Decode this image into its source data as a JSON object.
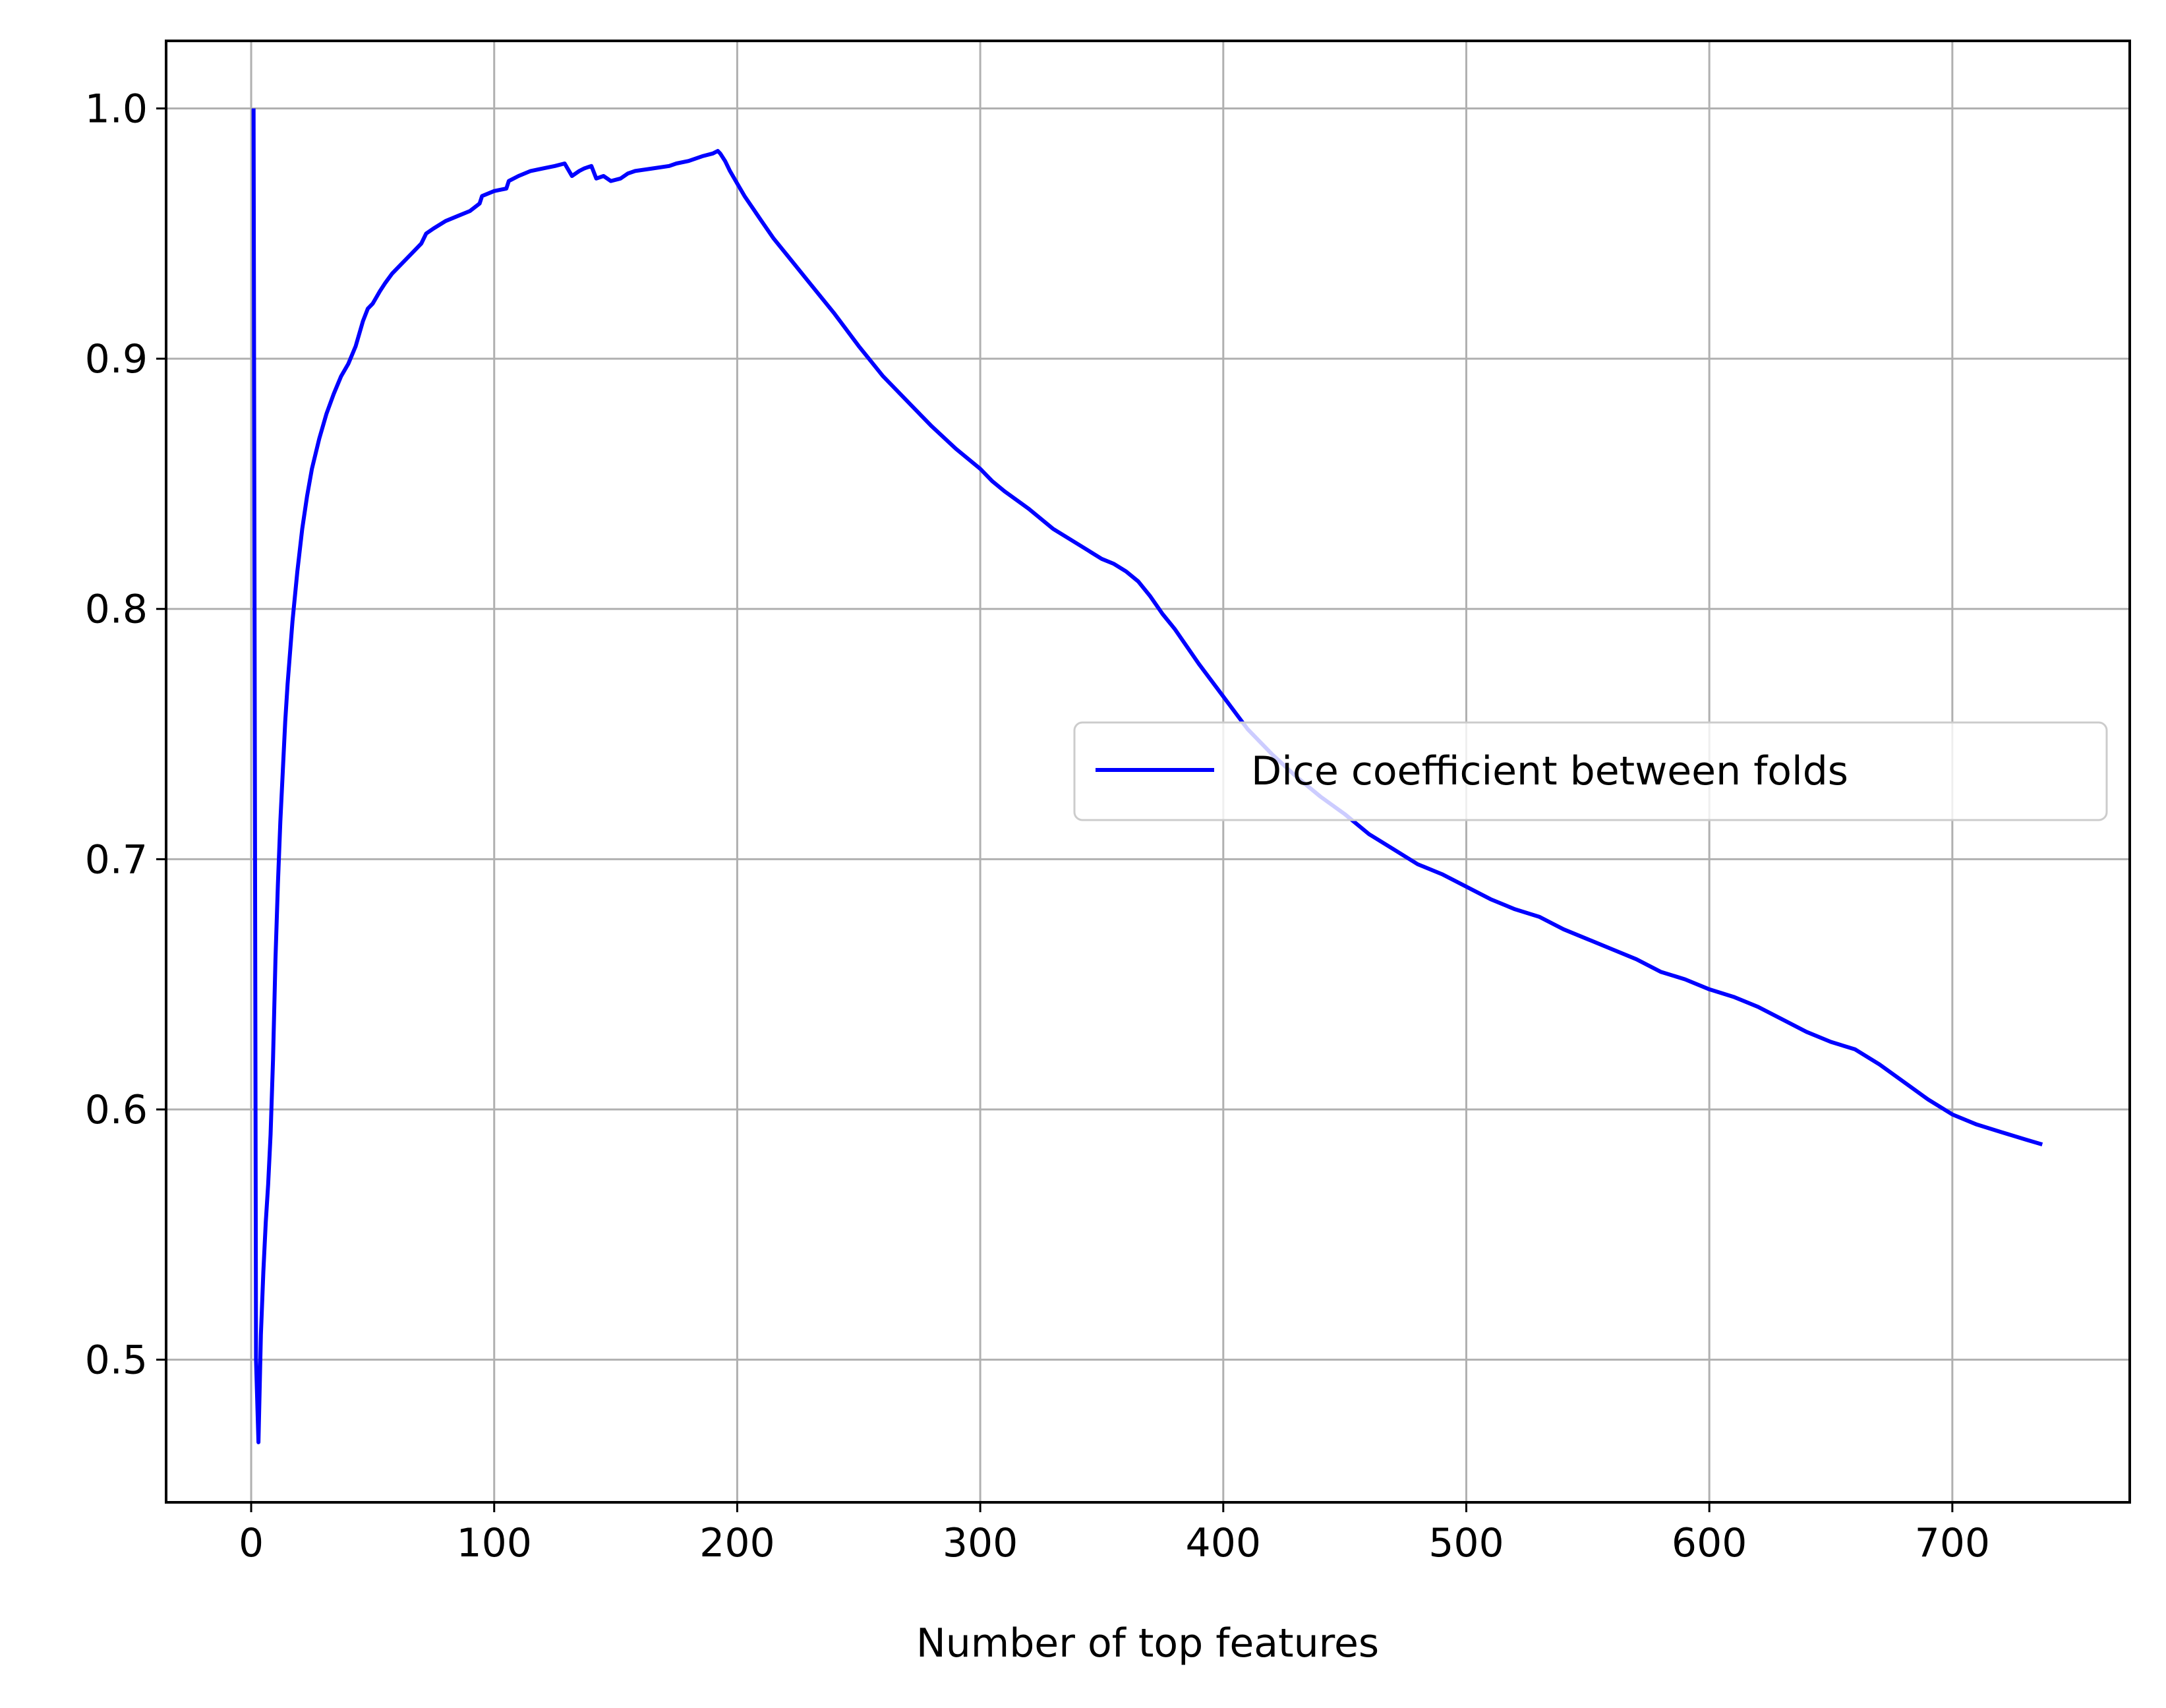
{
  "chart_data": {
    "type": "line",
    "title": "",
    "xlabel": "Number of top features",
    "ylabel": "",
    "xlim": [
      -35,
      773
    ],
    "ylim": [
      0.443,
      1.027
    ],
    "xticks": [
      0,
      100,
      200,
      300,
      400,
      500,
      600,
      700
    ],
    "xtick_labels": [
      "0",
      "100",
      "200",
      "300",
      "400",
      "500",
      "600",
      "700"
    ],
    "yticks": [
      0.5,
      0.6,
      0.7,
      0.8,
      0.9,
      1.0
    ],
    "ytick_labels": [
      "0.5",
      "0.6",
      "0.7",
      "0.8",
      "0.9",
      "1.0"
    ],
    "grid": true,
    "legend_position": "center-right",
    "series": [
      {
        "name": "Dice coefficient between folds",
        "color": "#0000ff",
        "x": [
          1,
          2,
          3,
          4,
          5,
          6,
          7,
          8,
          9,
          10,
          11,
          12,
          13,
          14,
          15,
          17,
          19,
          21,
          23,
          25,
          28,
          31,
          34,
          37,
          40,
          43,
          46,
          48,
          50,
          53,
          55,
          58,
          62,
          66,
          70,
          72,
          75,
          80,
          85,
          90,
          94,
          95,
          100,
          105,
          106,
          110,
          115,
          120,
          125,
          129,
          132,
          135,
          137,
          140,
          142,
          145,
          148,
          152,
          155,
          158,
          165,
          172,
          175,
          180,
          186,
          190,
          192,
          193,
          195,
          197,
          200,
          203,
          210,
          215,
          220,
          230,
          240,
          250,
          255,
          260,
          270,
          280,
          290,
          300,
          305,
          310,
          320,
          330,
          340,
          350,
          355,
          360,
          365,
          370,
          375,
          380,
          385,
          390,
          400,
          410,
          420,
          430,
          440,
          450,
          460,
          470,
          480,
          490,
          500,
          510,
          520,
          530,
          540,
          550,
          560,
          570,
          580,
          590,
          600,
          610,
          620,
          630,
          640,
          650,
          660,
          670,
          680,
          690,
          700,
          710,
          720,
          730,
          737
        ],
        "y": [
          1.0,
          0.5,
          0.467,
          0.51,
          0.535,
          0.555,
          0.57,
          0.59,
          0.62,
          0.66,
          0.69,
          0.715,
          0.735,
          0.755,
          0.77,
          0.795,
          0.815,
          0.832,
          0.845,
          0.856,
          0.868,
          0.878,
          0.886,
          0.893,
          0.898,
          0.905,
          0.915,
          0.92,
          0.922,
          0.927,
          0.93,
          0.934,
          0.938,
          0.942,
          0.946,
          0.95,
          0.952,
          0.955,
          0.957,
          0.959,
          0.962,
          0.965,
          0.967,
          0.968,
          0.971,
          0.973,
          0.975,
          0.976,
          0.977,
          0.978,
          0.973,
          0.975,
          0.976,
          0.977,
          0.972,
          0.973,
          0.971,
          0.972,
          0.974,
          0.975,
          0.976,
          0.977,
          0.978,
          0.979,
          0.981,
          0.982,
          0.983,
          0.982,
          0.979,
          0.975,
          0.97,
          0.965,
          0.955,
          0.948,
          0.942,
          0.93,
          0.918,
          0.905,
          0.899,
          0.893,
          0.883,
          0.873,
          0.864,
          0.856,
          0.851,
          0.847,
          0.84,
          0.832,
          0.826,
          0.82,
          0.818,
          0.815,
          0.811,
          0.805,
          0.798,
          0.792,
          0.785,
          0.778,
          0.765,
          0.752,
          0.742,
          0.733,
          0.725,
          0.718,
          0.71,
          0.704,
          0.698,
          0.694,
          0.689,
          0.684,
          0.68,
          0.677,
          0.672,
          0.668,
          0.664,
          0.66,
          0.655,
          0.652,
          0.648,
          0.645,
          0.641,
          0.636,
          0.631,
          0.627,
          0.624,
          0.618,
          0.611,
          0.604,
          0.598,
          0.594,
          0.591,
          0.588,
          0.586
        ]
      }
    ]
  }
}
